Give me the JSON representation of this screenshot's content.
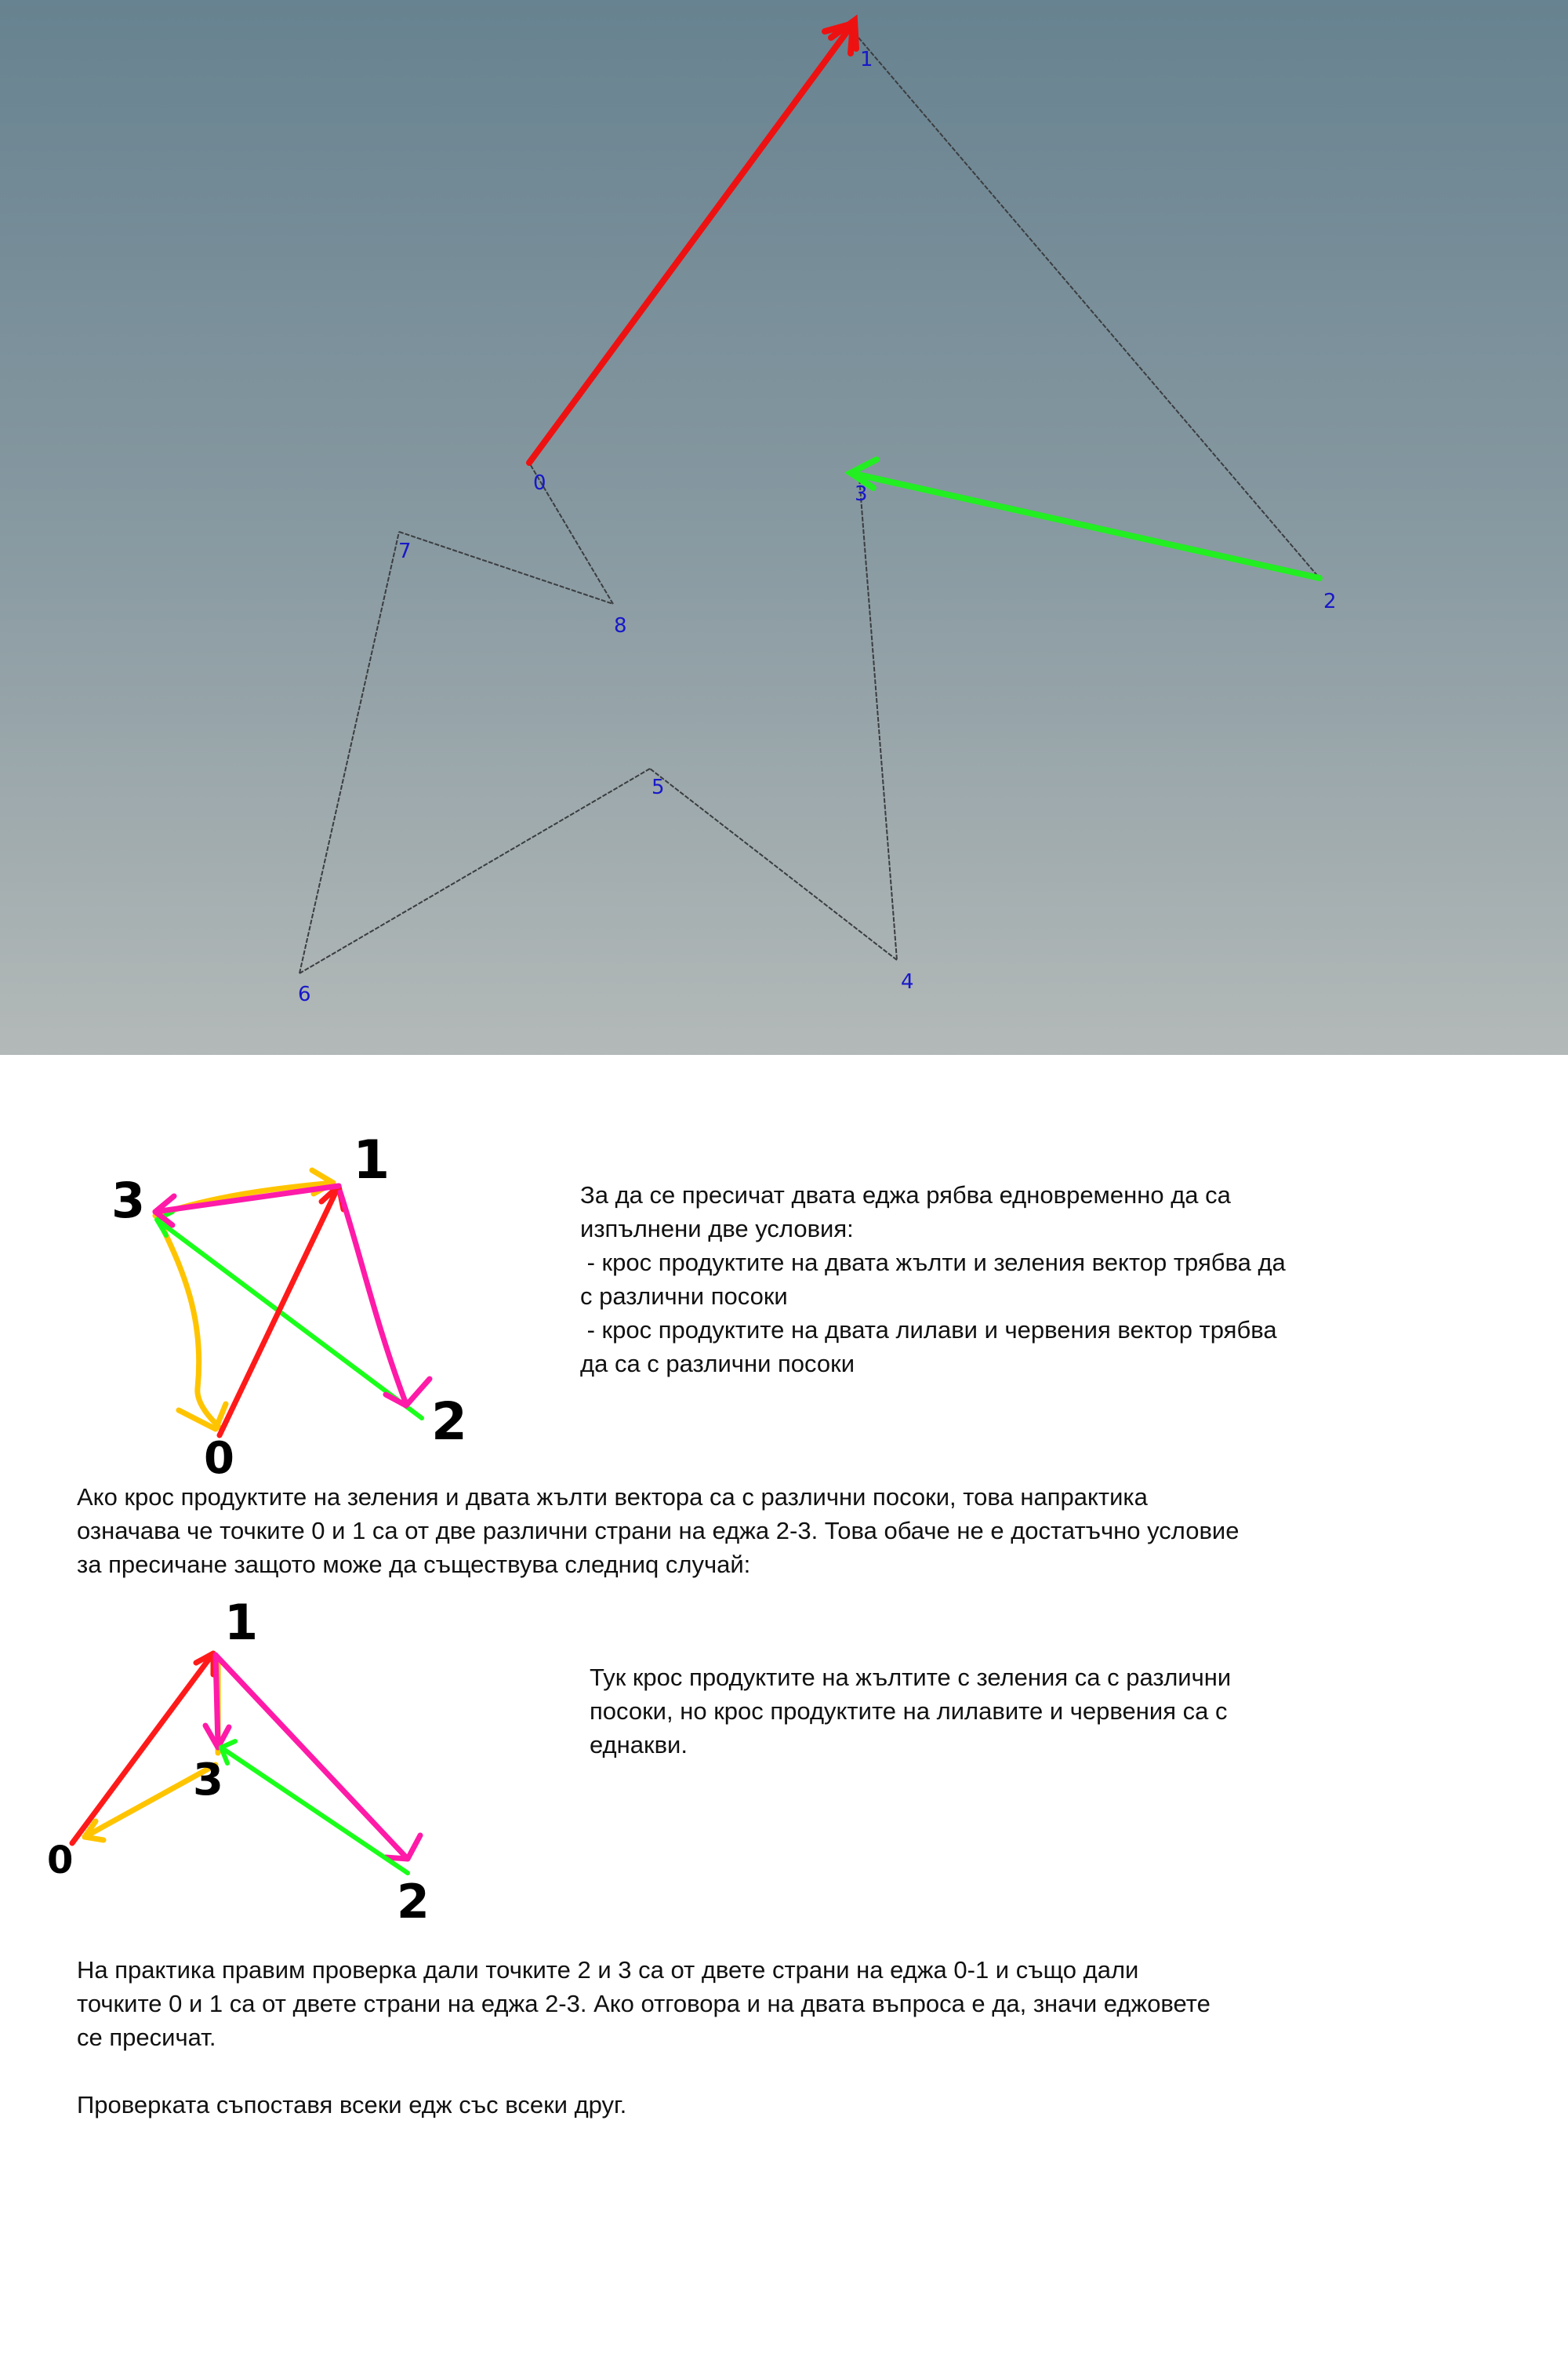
{
  "viewport": {
    "vertex_labels": [
      "0",
      "1",
      "2",
      "3",
      "4",
      "5",
      "6",
      "7",
      "8"
    ],
    "colors": {
      "polygon_edge": "#3a3d40",
      "red_vector": "#ee1111",
      "green_vector": "#22ee22",
      "label": "#1818c8"
    }
  },
  "sketch1": {
    "labels": [
      "3",
      "1",
      "0",
      "2"
    ],
    "colors": {
      "red": "#ff1a1a",
      "green": "#1aff1a",
      "yellow": "#ffc400",
      "magenta": "#ff1aa8"
    }
  },
  "explanation": {
    "paragraph1_lines": [
      "За да се пресичат двата еджа рябва едновременно да са",
      "изпълнени две условия:",
      " - крос продуктите на двата жълти и зеления вектор трябва да",
      "с различни посоки",
      " - крос продуктите на двата лилави и червения вектор трябва",
      "да са с различни посоки"
    ],
    "paragraph2_lines": [
      "Ако крос продуктите на зеления и двата жълти вектора са с различни посоки, това напрактика",
      "означава че точките 0 и 1 са от две различни страни на еджа 2-3. Това обаче не е достатъчно условие",
      "за пресичане защото може да съществува следниq случай:"
    ]
  },
  "sketch2": {
    "labels": [
      "1",
      "3",
      "0",
      "2"
    ],
    "caption_lines": [
      "Тук крос продуктите на жълтите с зеления са с различни",
      "посоки, но крос продуктите на лилавите и червения са с",
      "еднакви."
    ]
  },
  "conclusion": {
    "lines": [
      "На практика правим проверка дали точките 2 и 3 са от двете страни на еджа 0-1 и също дали",
      "точките 0 и 1 са от двете страни на еджа 2-3. Ако отговора и на двата въпроса е да, значи еджовете",
      "се пресичат."
    ],
    "final_line": "Проверката съпоставя всеки едж със всеки друг."
  }
}
